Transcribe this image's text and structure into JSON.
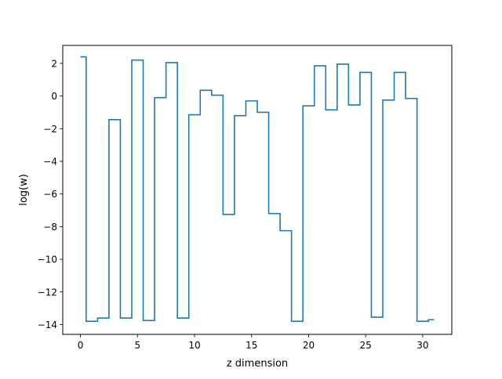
{
  "chart_data": {
    "type": "line",
    "style": "step-mid",
    "title": "",
    "xlabel": "z dimension",
    "ylabel": "log(w)",
    "xlim": [
      -1.55,
      32.55
    ],
    "ylim": [
      -14.6,
      3.1
    ],
    "xticks": [
      0,
      5,
      10,
      15,
      20,
      25,
      30
    ],
    "yticks": [
      2,
      0,
      -2,
      -4,
      -6,
      -8,
      -10,
      -12,
      -14
    ],
    "ytick_labels": [
      "2",
      "0",
      "−2",
      "−4",
      "−6",
      "−8",
      "−10",
      "−12",
      "−14"
    ],
    "grid": false,
    "legend": "none",
    "series": [
      {
        "color": "#1f77b4",
        "x": [
          0,
          1,
          2,
          3,
          4,
          5,
          6,
          7,
          8,
          9,
          10,
          11,
          12,
          13,
          14,
          15,
          16,
          17,
          18,
          19,
          20,
          21,
          22,
          23,
          24,
          25,
          26,
          27,
          28,
          29,
          30,
          31
        ],
        "y": [
          2.4,
          -13.8,
          -13.6,
          -1.45,
          -13.6,
          2.2,
          -13.75,
          -0.1,
          2.05,
          -13.6,
          -1.15,
          0.35,
          0.05,
          -7.25,
          -1.2,
          -0.3,
          -1.0,
          -7.2,
          -8.25,
          -13.8,
          -0.6,
          1.85,
          -0.85,
          1.95,
          -0.55,
          1.45,
          -13.55,
          -0.25,
          1.45,
          -0.15,
          -13.8,
          -13.7
        ]
      }
    ]
  }
}
